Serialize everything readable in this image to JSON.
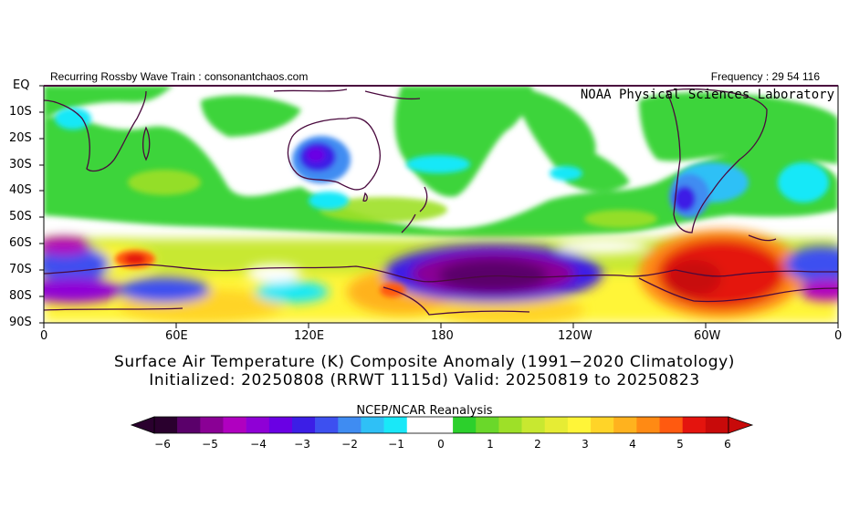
{
  "header": {
    "left_text": "Recurring Rossby Wave Train : consonantchaos.com",
    "right_text": "Frequency : 29 54 116"
  },
  "map": {
    "watermark": "NOAA Physical Sciences Laboratory",
    "lat_labels": [
      "EQ",
      "10S",
      "20S",
      "30S",
      "40S",
      "50S",
      "60S",
      "70S",
      "80S",
      "90S"
    ],
    "lon_labels": [
      "0",
      "60E",
      "120E",
      "180",
      "120W",
      "60W",
      "0"
    ],
    "shading_note": "",
    "land_outline_color": "#4a0a3e"
  },
  "title": {
    "line1": "Surface Air Temperature (K) Composite Anomaly (1991−2020 Climatology)",
    "line2": "Initialized: 20250808 (RRWT 1115d) Valid: 20250819 to 20250823"
  },
  "colorbar": {
    "label": "NCEP/NCAR Reanalysis",
    "tick_labels": [
      "−6",
      "−5",
      "−4",
      "−3",
      "−2",
      "−1",
      "0",
      "1",
      "2",
      "3",
      "4",
      "5",
      "6"
    ],
    "colors": [
      "#2a002e",
      "#5a006a",
      "#8a0095",
      "#b000c0",
      "#8f00d6",
      "#6a00e4",
      "#3c1ee6",
      "#3d50f0",
      "#3f8cf2",
      "#2fc0f6",
      "#19e8f8",
      "#ffffff",
      "#ffffff",
      "#2cd02c",
      "#6ad82a",
      "#9ee028",
      "#c8e830",
      "#e6ec34",
      "#fff538",
      "#ffd428",
      "#ffb21e",
      "#ff8a14",
      "#ff5a10",
      "#e4140e",
      "#c80a0a"
    ]
  }
}
